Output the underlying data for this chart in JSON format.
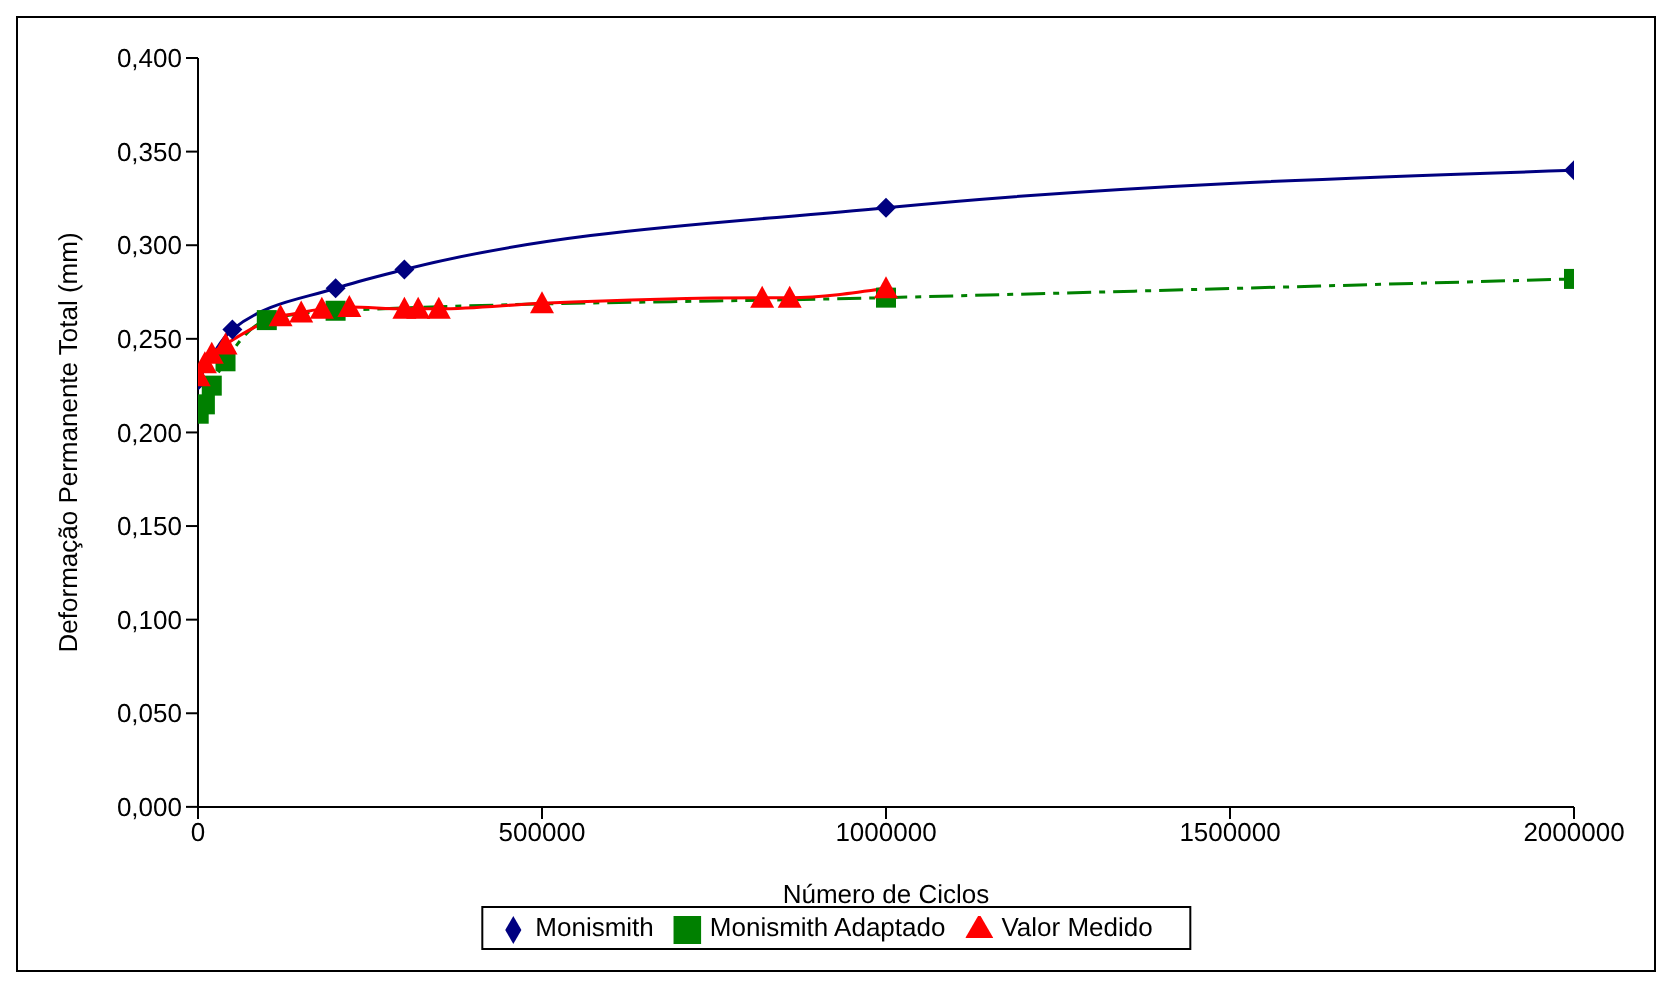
{
  "chart_data": {
    "type": "line",
    "xlabel": "Número de Ciclos",
    "ylabel": "Deformação Permanente Total (mm)",
    "xlim": [
      0,
      2000000
    ],
    "xticks": [
      0,
      500000,
      1000000,
      1500000,
      2000000
    ],
    "ylim": [
      0,
      0.4
    ],
    "yticks": [
      {
        "value": 0,
        "label": "0,000"
      },
      {
        "value": 0.05,
        "label": "0,050"
      },
      {
        "value": 0.1,
        "label": "0,100"
      },
      {
        "value": 0.15,
        "label": "0,150"
      },
      {
        "value": 0.2,
        "label": "0,200"
      },
      {
        "value": 0.25,
        "label": "0,250"
      },
      {
        "value": 0.3,
        "label": "0,300"
      },
      {
        "value": 0.35,
        "label": "0,350"
      },
      {
        "value": 0.4,
        "label": "0,400"
      }
    ],
    "grid": false,
    "legend": "bottom",
    "series": [
      {
        "name": "Monismith",
        "color": "#000080",
        "marker": "diamond",
        "line_style": "solid",
        "x": [
          1000,
          10000,
          50000,
          100000,
          200000,
          300000,
          1000000,
          2000000
        ],
        "values": [
          0.228,
          null,
          0.255,
          null,
          0.277,
          0.287,
          0.32,
          0.34
        ]
      },
      {
        "name": "Monismith Adaptado",
        "color": "#008000",
        "marker": "square",
        "line_style": "dashed",
        "x": [
          1000,
          10000,
          20000,
          40000,
          100000,
          200000,
          300000,
          1000000,
          2000000
        ],
        "values": [
          0.21,
          0.215,
          0.225,
          0.238,
          0.26,
          0.265,
          null,
          0.272,
          0.282
        ]
      },
      {
        "name": "Valor Medido",
        "color": "#ff0000",
        "marker": "triangle",
        "line_style": "solid",
        "x": [
          1000,
          10000,
          20000,
          40000,
          120000,
          150000,
          180000,
          220000,
          300000,
          320000,
          350000,
          500000,
          820000,
          860000,
          1000000
        ],
        "values": [
          0.23,
          0.237,
          0.242,
          0.247,
          0.262,
          0.264,
          0.266,
          0.267,
          0.266,
          0.266,
          0.266,
          0.269,
          0.272,
          0.272,
          0.277
        ]
      }
    ]
  }
}
